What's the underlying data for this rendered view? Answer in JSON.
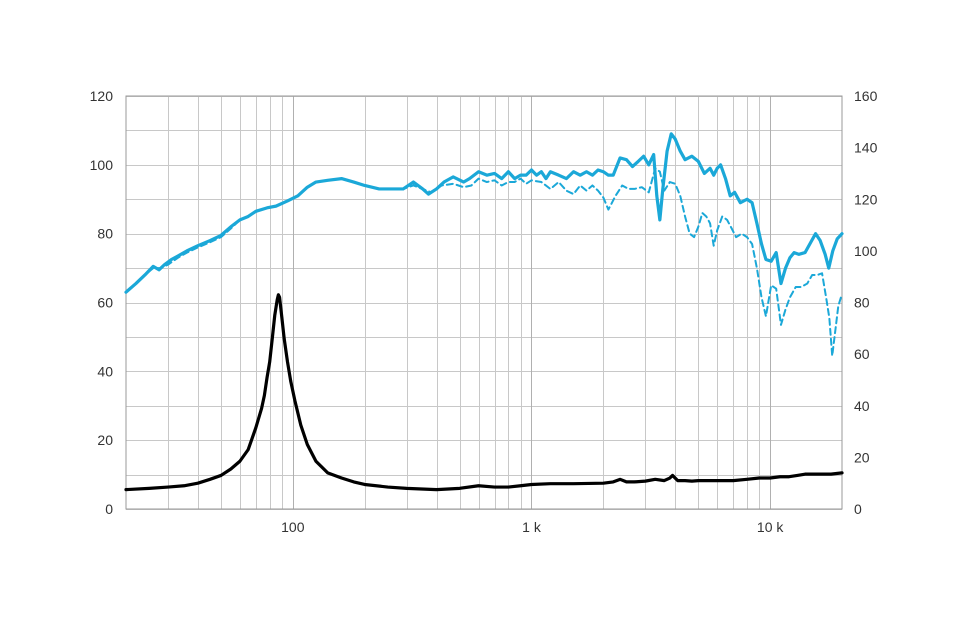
{
  "chart_data": {
    "type": "line",
    "x_scale": "log",
    "xlim": [
      20,
      20000
    ],
    "x_ticks": [
      {
        "value": 100,
        "label": "100"
      },
      {
        "value": 1000,
        "label": "1 k"
      },
      {
        "value": 10000,
        "label": "10 k"
      }
    ],
    "y_left": {
      "ylim": [
        0,
        120
      ],
      "ticks": [
        {
          "value": 0,
          "label": "0"
        },
        {
          "value": 20,
          "label": "20"
        },
        {
          "value": 40,
          "label": "40"
        },
        {
          "value": 60,
          "label": "60"
        },
        {
          "value": 80,
          "label": "80"
        },
        {
          "value": 100,
          "label": "100"
        },
        {
          "value": 120,
          "label": "120"
        }
      ]
    },
    "y_right": {
      "ylim": [
        0,
        160
      ],
      "ticks": [
        {
          "value": 0,
          "label": "0"
        },
        {
          "value": 20,
          "label": "20"
        },
        {
          "value": 40,
          "label": "40"
        },
        {
          "value": 60,
          "label": "60"
        },
        {
          "value": 80,
          "label": "80"
        },
        {
          "value": 100,
          "label": "100"
        },
        {
          "value": 120,
          "label": "120"
        },
        {
          "value": 140,
          "label": "140"
        },
        {
          "value": 160,
          "label": "160"
        }
      ]
    },
    "grid": true,
    "legend": "none",
    "colors": {
      "spl": "#1ba8d8",
      "impedance": "#000000"
    },
    "series": [
      {
        "id": "spl-solid",
        "axis": "left",
        "style": "solid",
        "color": "#1ba8d8",
        "points": [
          [
            20,
            63
          ],
          [
            22,
            65.5
          ],
          [
            24,
            68
          ],
          [
            26,
            70.5
          ],
          [
            27.5,
            69.5
          ],
          [
            29,
            71
          ],
          [
            31,
            72.5
          ],
          [
            33,
            73.5
          ],
          [
            36,
            75
          ],
          [
            40,
            76.5
          ],
          [
            45,
            78
          ],
          [
            50,
            79.5
          ],
          [
            55,
            82
          ],
          [
            60,
            84
          ],
          [
            65,
            85
          ],
          [
            70,
            86.5
          ],
          [
            78,
            87.5
          ],
          [
            85,
            88
          ],
          [
            95,
            89.5
          ],
          [
            105,
            91
          ],
          [
            115,
            93.5
          ],
          [
            125,
            95
          ],
          [
            140,
            95.5
          ],
          [
            160,
            96
          ],
          [
            180,
            95
          ],
          [
            200,
            94
          ],
          [
            230,
            93
          ],
          [
            260,
            93
          ],
          [
            290,
            93
          ],
          [
            320,
            95
          ],
          [
            350,
            93
          ],
          [
            370,
            91.5
          ],
          [
            400,
            93
          ],
          [
            430,
            95
          ],
          [
            470,
            96.5
          ],
          [
            520,
            95
          ],
          [
            550,
            96
          ],
          [
            600,
            98
          ],
          [
            650,
            97
          ],
          [
            700,
            97.5
          ],
          [
            750,
            96
          ],
          [
            800,
            98
          ],
          [
            850,
            96
          ],
          [
            900,
            97
          ],
          [
            950,
            97
          ],
          [
            1000,
            98.5
          ],
          [
            1050,
            97
          ],
          [
            1100,
            98
          ],
          [
            1150,
            96
          ],
          [
            1200,
            98
          ],
          [
            1300,
            97
          ],
          [
            1400,
            96
          ],
          [
            1500,
            98
          ],
          [
            1600,
            97
          ],
          [
            1700,
            98
          ],
          [
            1800,
            97
          ],
          [
            1900,
            98.5
          ],
          [
            2000,
            98
          ],
          [
            2100,
            97
          ],
          [
            2200,
            97
          ],
          [
            2350,
            102
          ],
          [
            2500,
            101.5
          ],
          [
            2650,
            99.5
          ],
          [
            2800,
            101
          ],
          [
            2950,
            102.5
          ],
          [
            3100,
            100
          ],
          [
            3250,
            103
          ],
          [
            3350,
            91
          ],
          [
            3450,
            84
          ],
          [
            3550,
            93
          ],
          [
            3700,
            104
          ],
          [
            3850,
            109
          ],
          [
            4000,
            107.5
          ],
          [
            4200,
            104
          ],
          [
            4400,
            101.5
          ],
          [
            4700,
            102.5
          ],
          [
            5000,
            101
          ],
          [
            5300,
            97.5
          ],
          [
            5600,
            99
          ],
          [
            5800,
            97
          ],
          [
            6000,
            99
          ],
          [
            6200,
            100
          ],
          [
            6500,
            96
          ],
          [
            6800,
            91
          ],
          [
            7100,
            92
          ],
          [
            7500,
            89
          ],
          [
            8000,
            90
          ],
          [
            8400,
            89
          ],
          [
            8800,
            83
          ],
          [
            9200,
            77
          ],
          [
            9600,
            72.5
          ],
          [
            10100,
            72
          ],
          [
            10600,
            74.5
          ],
          [
            11100,
            65.5
          ],
          [
            11600,
            70
          ],
          [
            12100,
            73
          ],
          [
            12600,
            74.5
          ],
          [
            13200,
            74
          ],
          [
            14000,
            74.5
          ],
          [
            14800,
            77.5
          ],
          [
            15500,
            80
          ],
          [
            16200,
            78
          ],
          [
            17000,
            74
          ],
          [
            17600,
            70
          ],
          [
            18300,
            75
          ],
          [
            19100,
            78.5
          ],
          [
            20000,
            80
          ]
        ]
      },
      {
        "id": "spl-dashed",
        "axis": "left",
        "style": "dashed",
        "color": "#1ba8d8",
        "points": [
          [
            20,
            63
          ],
          [
            22,
            65.5
          ],
          [
            24,
            68
          ],
          [
            26,
            70
          ],
          [
            28,
            70
          ],
          [
            30,
            71
          ],
          [
            33,
            73
          ],
          [
            36,
            74.5
          ],
          [
            40,
            76
          ],
          [
            45,
            77.5
          ],
          [
            50,
            79
          ],
          [
            55,
            81.5
          ],
          [
            60,
            84
          ],
          [
            65,
            85
          ],
          [
            70,
            86.5
          ],
          [
            78,
            87.5
          ],
          [
            85,
            88
          ],
          [
            95,
            89.5
          ],
          [
            105,
            91
          ],
          [
            115,
            93.5
          ],
          [
            125,
            95
          ],
          [
            140,
            95.5
          ],
          [
            160,
            96
          ],
          [
            180,
            95
          ],
          [
            200,
            94
          ],
          [
            230,
            93
          ],
          [
            260,
            93
          ],
          [
            290,
            93
          ],
          [
            320,
            94
          ],
          [
            350,
            93
          ],
          [
            380,
            92
          ],
          [
            420,
            94
          ],
          [
            470,
            94.5
          ],
          [
            520,
            93.5
          ],
          [
            560,
            94
          ],
          [
            600,
            96
          ],
          [
            650,
            95
          ],
          [
            700,
            95.5
          ],
          [
            750,
            94
          ],
          [
            800,
            95
          ],
          [
            850,
            95
          ],
          [
            900,
            96
          ],
          [
            950,
            94.5
          ],
          [
            1000,
            95.5
          ],
          [
            1100,
            95
          ],
          [
            1200,
            93
          ],
          [
            1300,
            95
          ],
          [
            1400,
            92.5
          ],
          [
            1500,
            91.5
          ],
          [
            1600,
            94
          ],
          [
            1700,
            92.5
          ],
          [
            1800,
            94
          ],
          [
            1900,
            92.5
          ],
          [
            2000,
            90.5
          ],
          [
            2100,
            87
          ],
          [
            2250,
            91
          ],
          [
            2400,
            94
          ],
          [
            2550,
            93
          ],
          [
            2700,
            93
          ],
          [
            2900,
            93.5
          ],
          [
            3100,
            92
          ],
          [
            3300,
            99
          ],
          [
            3450,
            98
          ],
          [
            3600,
            92.5
          ],
          [
            3800,
            95
          ],
          [
            4000,
            94.5
          ],
          [
            4200,
            91
          ],
          [
            4400,
            85
          ],
          [
            4600,
            80
          ],
          [
            4800,
            79
          ],
          [
            5000,
            82
          ],
          [
            5200,
            86
          ],
          [
            5400,
            85
          ],
          [
            5600,
            83
          ],
          [
            5800,
            76.5
          ],
          [
            6000,
            81
          ],
          [
            6300,
            85
          ],
          [
            6600,
            84
          ],
          [
            6900,
            81.5
          ],
          [
            7200,
            79
          ],
          [
            7600,
            80
          ],
          [
            8000,
            79
          ],
          [
            8400,
            77
          ],
          [
            8800,
            70
          ],
          [
            9200,
            61.5
          ],
          [
            9600,
            56
          ],
          [
            10100,
            65
          ],
          [
            10600,
            64
          ],
          [
            11100,
            53.5
          ],
          [
            11600,
            58
          ],
          [
            12100,
            61.5
          ],
          [
            12800,
            64.5
          ],
          [
            13500,
            64.5
          ],
          [
            14300,
            65.5
          ],
          [
            15000,
            68
          ],
          [
            15800,
            68
          ],
          [
            16500,
            68.5
          ],
          [
            17200,
            61
          ],
          [
            17700,
            55.5
          ],
          [
            18200,
            44.5
          ],
          [
            18800,
            52.5
          ],
          [
            19300,
            59
          ],
          [
            20000,
            62.5
          ]
        ]
      },
      {
        "id": "impedance",
        "axis": "right",
        "style": "solid",
        "color": "#000000",
        "points": [
          [
            20,
            7.5
          ],
          [
            25,
            8
          ],
          [
            30,
            8.5
          ],
          [
            35,
            9
          ],
          [
            40,
            10
          ],
          [
            45,
            11.5
          ],
          [
            50,
            13
          ],
          [
            55,
            15.5
          ],
          [
            60,
            18.5
          ],
          [
            65,
            23
          ],
          [
            70,
            31.5
          ],
          [
            74,
            39
          ],
          [
            76,
            44
          ],
          [
            78,
            51
          ],
          [
            80,
            57
          ],
          [
            82,
            66
          ],
          [
            84,
            75
          ],
          [
            86,
            81
          ],
          [
            87,
            83
          ],
          [
            88,
            82
          ],
          [
            90,
            74
          ],
          [
            92,
            66
          ],
          [
            95,
            57
          ],
          [
            98,
            49.5
          ],
          [
            102,
            42
          ],
          [
            108,
            32.5
          ],
          [
            115,
            25
          ],
          [
            125,
            18.5
          ],
          [
            140,
            14
          ],
          [
            160,
            12
          ],
          [
            180,
            10.5
          ],
          [
            200,
            9.5
          ],
          [
            250,
            8.5
          ],
          [
            300,
            8
          ],
          [
            400,
            7.5
          ],
          [
            500,
            8
          ],
          [
            600,
            9
          ],
          [
            700,
            8.5
          ],
          [
            800,
            8.5
          ],
          [
            900,
            9
          ],
          [
            1000,
            9.5
          ],
          [
            1200,
            9.8
          ],
          [
            1500,
            9.8
          ],
          [
            2000,
            10
          ],
          [
            2200,
            10.5
          ],
          [
            2350,
            11.5
          ],
          [
            2500,
            10.5
          ],
          [
            2700,
            10.5
          ],
          [
            3000,
            10.8
          ],
          [
            3300,
            11.5
          ],
          [
            3600,
            11
          ],
          [
            3800,
            12
          ],
          [
            3900,
            13
          ],
          [
            4100,
            11
          ],
          [
            4400,
            11
          ],
          [
            4700,
            10.8
          ],
          [
            5000,
            11
          ],
          [
            5500,
            11
          ],
          [
            6000,
            11
          ],
          [
            7000,
            11
          ],
          [
            8000,
            11.5
          ],
          [
            9000,
            12
          ],
          [
            10000,
            12
          ],
          [
            11000,
            12.5
          ],
          [
            12000,
            12.5
          ],
          [
            13000,
            13
          ],
          [
            14000,
            13.5
          ],
          [
            15000,
            13.5
          ],
          [
            16000,
            13.5
          ],
          [
            17000,
            13.5
          ],
          [
            18000,
            13.5
          ],
          [
            20000,
            14
          ]
        ]
      }
    ]
  }
}
